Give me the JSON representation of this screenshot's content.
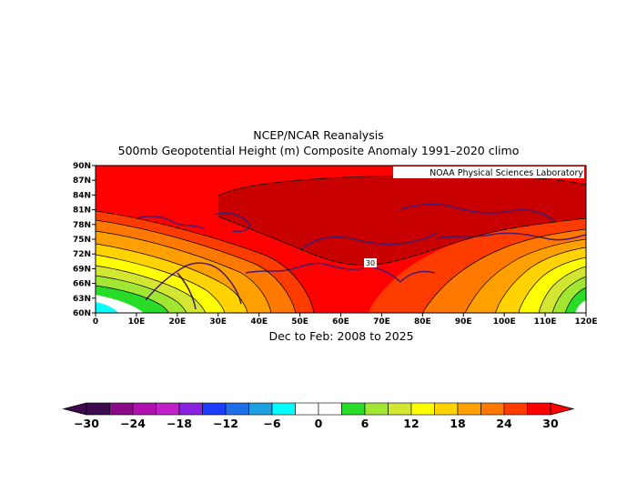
{
  "title_line1": "NCEP/NCAR Reanalysis",
  "title_line2": "500mb Geopotential Height (m) Composite Anomaly 1991–2020 climo",
  "subtitle": "Dec to Feb: 2008 to 2025",
  "credit": "NOAA Physical Sciences Laboratory",
  "contour_label": "30",
  "lat_ticks": [
    "90N",
    "87N",
    "84N",
    "81N",
    "78N",
    "75N",
    "72N",
    "69N",
    "66N",
    "63N",
    "60N"
  ],
  "lon_ticks": [
    "0",
    "10E",
    "20E",
    "30E",
    "40E",
    "50E",
    "60E",
    "70E",
    "80E",
    "90E",
    "100E",
    "110E",
    "120E"
  ],
  "colorbar": {
    "labels": [
      "−30",
      "−24",
      "−18",
      "−12",
      "−6",
      "0",
      "6",
      "12",
      "18",
      "24",
      "30"
    ],
    "colors": [
      "#3d0a4e",
      "#8a0a8a",
      "#b010b0",
      "#c020c8",
      "#8a20e0",
      "#1e3cff",
      "#1e6ee8",
      "#1ea0e0",
      "#00ffff",
      "#ffffff",
      "#ffffff",
      "#28dc28",
      "#a0e632",
      "#d2e632",
      "#ffff00",
      "#ffd200",
      "#ffa000",
      "#ff7800",
      "#ff3c00",
      "#ff0000"
    ]
  },
  "map_colors": {
    "darkred": "#c80000",
    "red": "#ff0000",
    "orangered": "#ff3c00",
    "orange": "#ff7800",
    "lightorange": "#ffa000",
    "gold": "#ffd200",
    "yellow": "#ffff00",
    "yellowgreen": "#d2e632",
    "lightgreen": "#a0e632",
    "green": "#28dc28",
    "cyan": "#00ffff",
    "coast": "#4a1a6e"
  }
}
